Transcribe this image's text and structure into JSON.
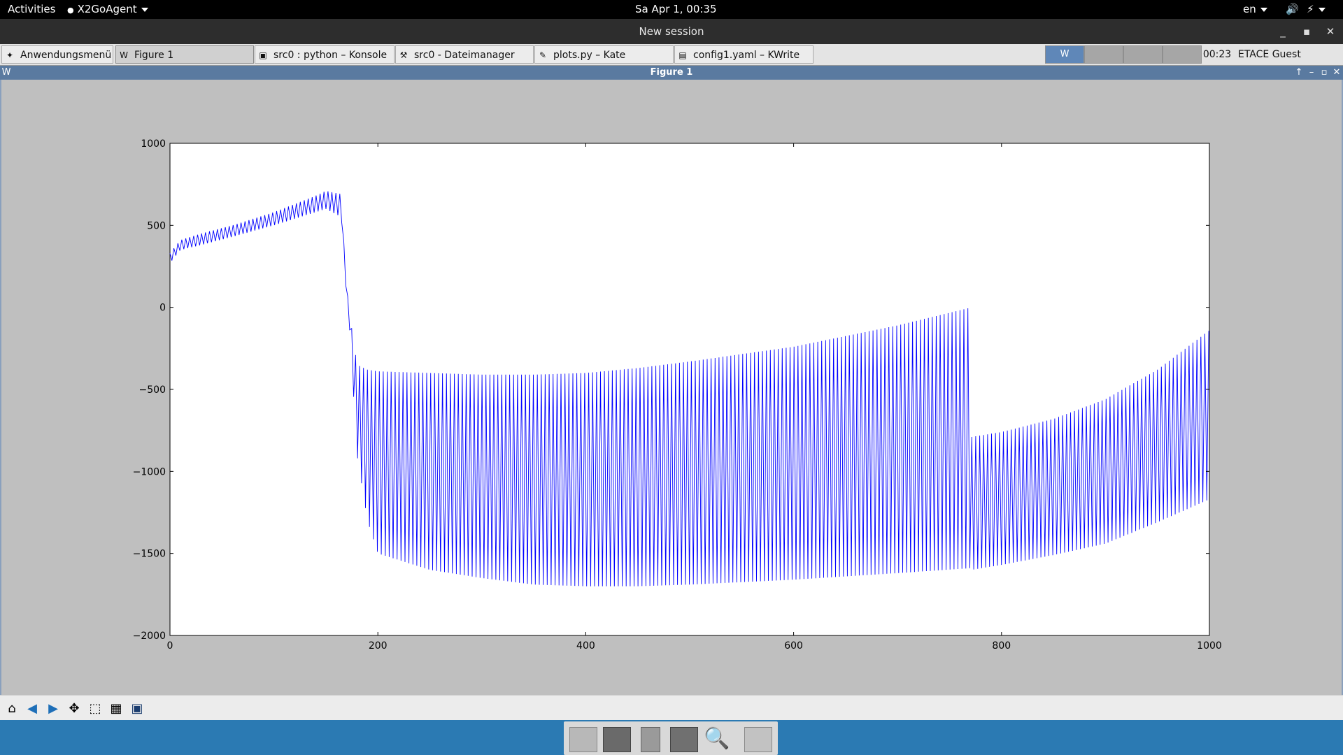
{
  "topbar": {
    "activities": "Activities",
    "app_menu": "X2GoAgent",
    "datetime": "Sa Apr  1, 00:35",
    "language": "en"
  },
  "session": {
    "title": "New session"
  },
  "taskbar": {
    "app_menu": "Anwendungsmenü",
    "tasks": [
      {
        "label": "Figure 1"
      },
      {
        "label": "src0 : python – Konsole"
      },
      {
        "label": "src0 - Dateimanager"
      },
      {
        "label": "plots.py – Kate"
      },
      {
        "label": "config1.yaml – KWrite"
      }
    ],
    "clock": "00:23",
    "account": "ETACE Guest Account"
  },
  "figure_window": {
    "title": "Figure 1"
  },
  "colors": {
    "line": "#0000ff",
    "dock": "#2b7ab3",
    "figure_titlebar": "#5a7aa0"
  },
  "toolbar_icons": [
    "home-icon",
    "back-arrow-icon",
    "forward-arrow-icon",
    "pan-icon",
    "zoom-icon",
    "configure-subplots-icon",
    "save-icon"
  ],
  "chart_data": {
    "type": "line",
    "title": "",
    "xlabel": "",
    "ylabel": "",
    "xlim": [
      0,
      1000
    ],
    "ylim": [
      -2000,
      1000
    ],
    "xticks": [
      0,
      200,
      400,
      600,
      800,
      1000
    ],
    "yticks": [
      1000,
      500,
      0,
      -500,
      -1000,
      -1500,
      -2000
    ],
    "xtick_labels": [
      "0",
      "200",
      "400",
      "600",
      "800",
      "1000"
    ],
    "ytick_labels": [
      "1000",
      "500",
      "0",
      "−500",
      "−1000",
      "−1500",
      "−2000"
    ],
    "grid": false,
    "series": [
      {
        "description_envelope": "oscillating series; upper and lower envelopes given at x positions",
        "x": [
          0,
          10,
          30,
          60,
          100,
          140,
          150,
          165,
          168,
          172,
          180,
          190,
          200,
          250,
          300,
          350,
          400,
          450,
          500,
          600,
          700,
          770,
          771,
          800,
          850,
          900,
          950,
          1000
        ],
        "upper": [
          330,
          410,
          450,
          500,
          580,
          680,
          710,
          690,
          300,
          -10,
          -350,
          -380,
          -390,
          -400,
          -410,
          -410,
          -400,
          -370,
          -330,
          -240,
          -110,
          -2,
          -790,
          -760,
          -680,
          -560,
          -380,
          -140
        ],
        "lower": [
          270,
          350,
          380,
          430,
          500,
          580,
          600,
          550,
          200,
          -40,
          -900,
          -1300,
          -1500,
          -1600,
          -1650,
          -1690,
          -1700,
          -1700,
          -1690,
          -1660,
          -1620,
          -1590,
          -1600,
          -1570,
          -1510,
          -1440,
          -1310,
          -1170
        ]
      }
    ]
  }
}
